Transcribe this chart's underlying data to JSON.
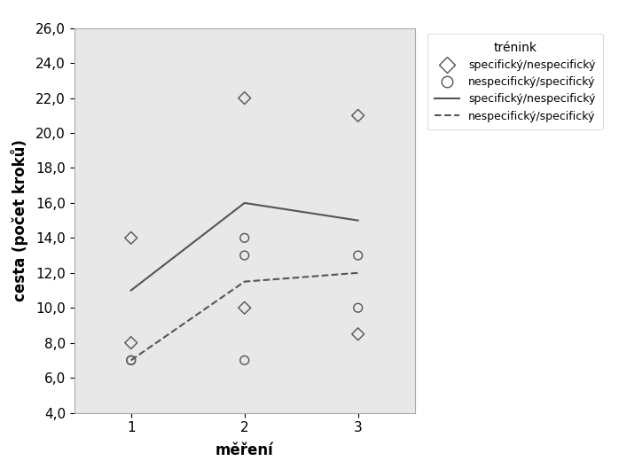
{
  "title": "",
  "xlabel": "měření",
  "ylabel": "cesta (počet kroků)",
  "xlim": [
    0.5,
    3.5
  ],
  "ylim": [
    4.0,
    26.0
  ],
  "xticks": [
    1,
    2,
    3
  ],
  "yticks": [
    4.0,
    6.0,
    8.0,
    10.0,
    12.0,
    14.0,
    16.0,
    18.0,
    20.0,
    22.0,
    24.0,
    26.0
  ],
  "bg_color": "#e8e8e8",
  "diamond_scatter_x": [
    1,
    1,
    2,
    2,
    3,
    3
  ],
  "diamond_scatter_y": [
    14.0,
    8.0,
    22.0,
    10.0,
    21.0,
    8.5
  ],
  "circle_scatter_x": [
    1,
    1,
    2,
    2,
    2,
    3,
    3
  ],
  "circle_scatter_y": [
    7.0,
    7.0,
    14.0,
    13.0,
    7.0,
    10.0,
    13.0
  ],
  "line1_x": [
    1,
    2,
    3
  ],
  "line1_y": [
    11.0,
    16.0,
    15.0
  ],
  "line2_x": [
    1,
    2,
    3
  ],
  "line2_y": [
    7.0,
    11.5,
    12.0
  ],
  "legend_title": "trénink",
  "legend_entries": [
    "specifický/nespecifický",
    "nespecifický/specifický",
    "specifický/nespecifický",
    "nespecifický/specifický"
  ],
  "line_color": "#555555",
  "font_size": 11,
  "fig_width": 6.98,
  "fig_height": 5.29,
  "dpi": 100
}
